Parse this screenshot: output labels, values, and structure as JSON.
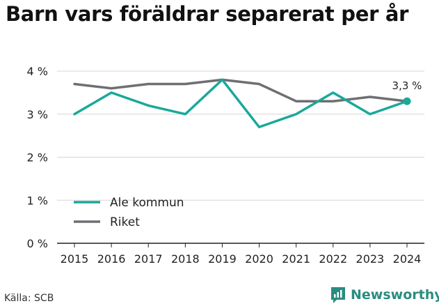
{
  "title": "Barn vars föräldrar separerat per år",
  "source": "Källa: SCB",
  "brand": {
    "name": "Newsworthy",
    "icon": "newsworthy-chart-logo-icon",
    "color": "#2a8c80"
  },
  "colors": {
    "ale": "#1aa89a",
    "riket": "#6f6e73",
    "grid": "#d6d6d6",
    "axis": "#222222"
  },
  "chart_data": {
    "type": "line",
    "categories": [
      "2015",
      "2016",
      "2017",
      "2018",
      "2019",
      "2020",
      "2021",
      "2022",
      "2023",
      "2024"
    ],
    "series": [
      {
        "name": "Ale kommun",
        "values": [
          3.0,
          3.5,
          3.2,
          3.0,
          3.8,
          2.7,
          3.0,
          3.5,
          3.0,
          3.3
        ]
      },
      {
        "name": "Riket",
        "values": [
          3.7,
          3.6,
          3.7,
          3.7,
          3.8,
          3.7,
          3.3,
          3.3,
          3.4,
          3.3
        ]
      }
    ],
    "ylim": [
      0,
      4
    ],
    "yticks": [
      0,
      1,
      2,
      3,
      4
    ],
    "ytick_labels": [
      "0 %",
      "1 %",
      "2 %",
      "3 %",
      "4 %"
    ],
    "annotation": "3,3 %",
    "legend_position": "bottom-left",
    "grid": true
  }
}
